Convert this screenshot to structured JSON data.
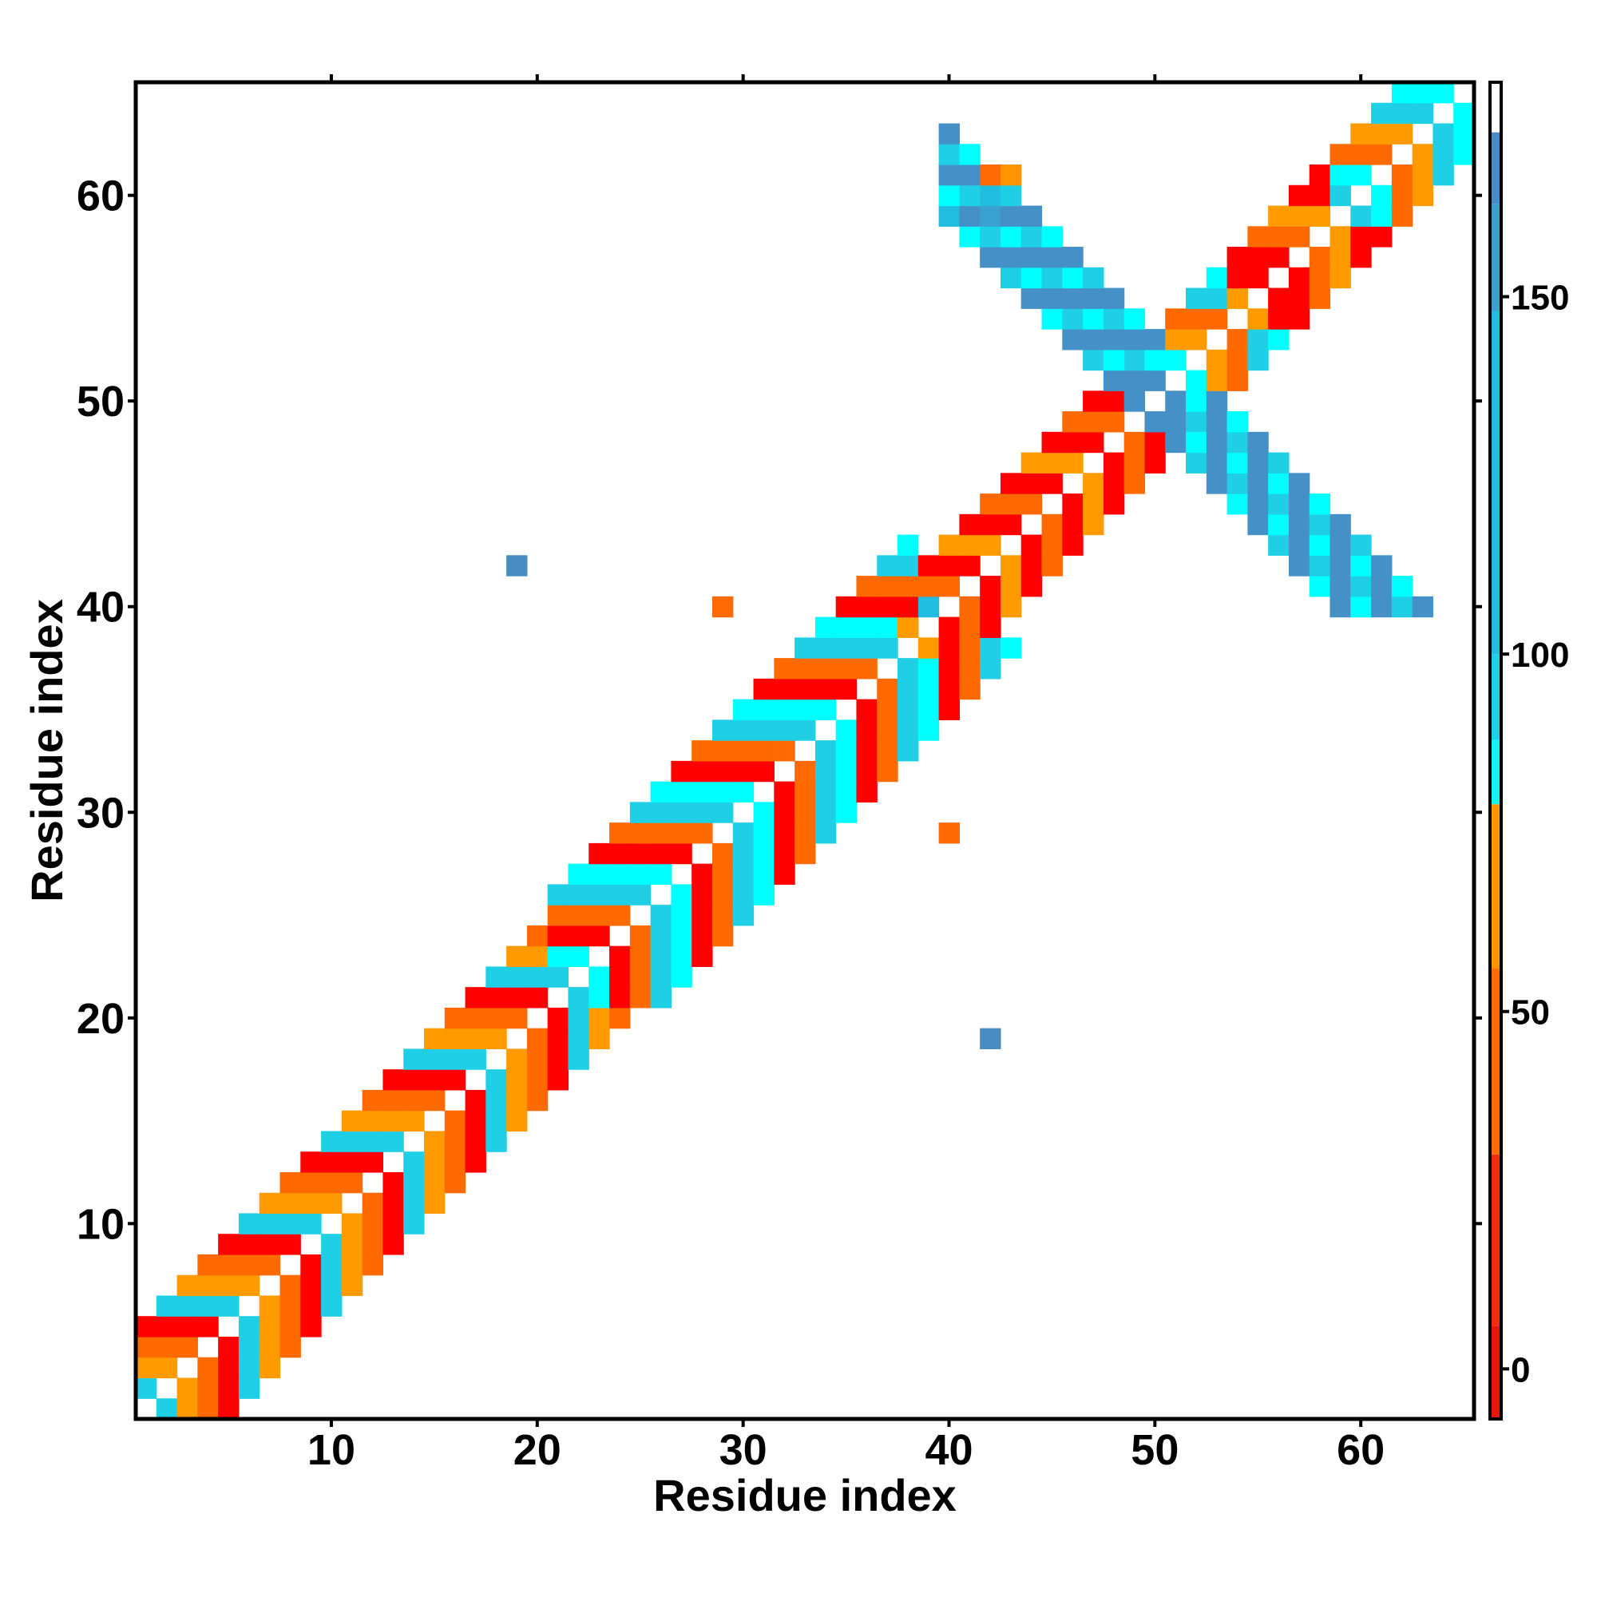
{
  "chart_data": {
    "type": "heatmap",
    "title": "",
    "xlabel": "Residue index",
    "ylabel": "Residue index",
    "xlim": [
      0.5,
      65.5
    ],
    "ylim": [
      0.5,
      65.5
    ],
    "x_ticks": [
      10,
      20,
      30,
      40,
      50,
      60
    ],
    "y_ticks": [
      10,
      20,
      30,
      40,
      50,
      60
    ],
    "grid": false,
    "colorbar": {
      "ticks": [
        0,
        50,
        100,
        150
      ],
      "range": [
        -7,
        180
      ],
      "bands": [
        {
          "from": -7,
          "to": 6,
          "color": "#e8140e"
        },
        {
          "from": 6,
          "to": 30,
          "color": "#f02d0a"
        },
        {
          "from": 30,
          "to": 56,
          "color": "#ff6a05"
        },
        {
          "from": 56,
          "to": 79,
          "color": "#ff9400"
        },
        {
          "from": 79,
          "to": 88,
          "color": "#14f5f0"
        },
        {
          "from": 88,
          "to": 100,
          "color": "#1ecfe8"
        },
        {
          "from": 100,
          "to": 148,
          "color": "#21bde0"
        },
        {
          "from": 148,
          "to": 163,
          "color": "#3aa0d0"
        },
        {
          "from": 163,
          "to": 173,
          "color": "#4a8cc0"
        },
        {
          "from": 173,
          "to": 180,
          "color": "#ffffff"
        }
      ]
    },
    "color_scale": {
      "red": "#ff0000",
      "dark_orange": "#ff6a00",
      "orange": "#ff9a00",
      "cyan": "#00ffff",
      "light_blue": "#1fcfe6",
      "steel_blue": "#4690c8"
    },
    "cells": [
      {
        "x": 19,
        "y": 42,
        "value": 165
      },
      {
        "x": 42,
        "y": 19,
        "value": 165
      },
      {
        "x": 29,
        "y": 40,
        "value": 45
      },
      {
        "x": 40,
        "y": 29,
        "value": 45
      },
      {
        "x": 33,
        "y": 32,
        "value": 40
      },
      {
        "x": 32,
        "y": 33,
        "value": 40
      },
      {
        "x": 39,
        "y": 40,
        "value": 110
      },
      {
        "x": 42,
        "y": 61,
        "value": 45
      },
      {
        "x": 43,
        "y": 61,
        "value": 60
      },
      {
        "x": 41,
        "y": 60,
        "value": 95
      },
      {
        "x": 42,
        "y": 60,
        "value": 110
      },
      {
        "x": 40,
        "y": 59,
        "value": 140
      },
      {
        "x": 42,
        "y": 59,
        "value": 150
      }
    ],
    "bands": [
      {
        "from": 1,
        "to": 21,
        "offset_min": 1,
        "offset_max": 4,
        "pattern": [
          "dark_orange",
          "red",
          "light_blue",
          "orange"
        ]
      },
      {
        "from": 21,
        "to": 38,
        "offset_min": 1,
        "offset_max": 5,
        "pattern": [
          "red",
          "dark_orange",
          "light_blue",
          "cyan"
        ]
      },
      {
        "from": 38,
        "to": 50,
        "offset_min": 1,
        "offset_max": 3,
        "pattern": [
          "red",
          "dark_orange",
          "red",
          "orange"
        ]
      },
      {
        "from": 50,
        "to": 54,
        "offset_min": 1,
        "offset_max": 3,
        "pattern": [
          "cyan",
          "orange",
          "dark_orange",
          "light_blue"
        ]
      },
      {
        "from": 54,
        "to": 65,
        "offset_min": 1,
        "offset_max": 3,
        "pattern": [
          "red",
          "red",
          "dark_orange",
          "orange"
        ]
      }
    ],
    "antiparallel_sheets": [
      {
        "sum": 101,
        "a_from": 40,
        "a_to": 50,
        "width": 2,
        "pattern": [
          "steel_blue",
          "light_blue",
          "steel_blue",
          "cyan"
        ]
      }
    ],
    "top_corner": [
      {
        "from": 59,
        "to": 65,
        "offset_min": 1,
        "offset_max": 3,
        "pattern": [
          "light_blue",
          "cyan",
          "dark_orange",
          "orange"
        ]
      }
    ]
  }
}
